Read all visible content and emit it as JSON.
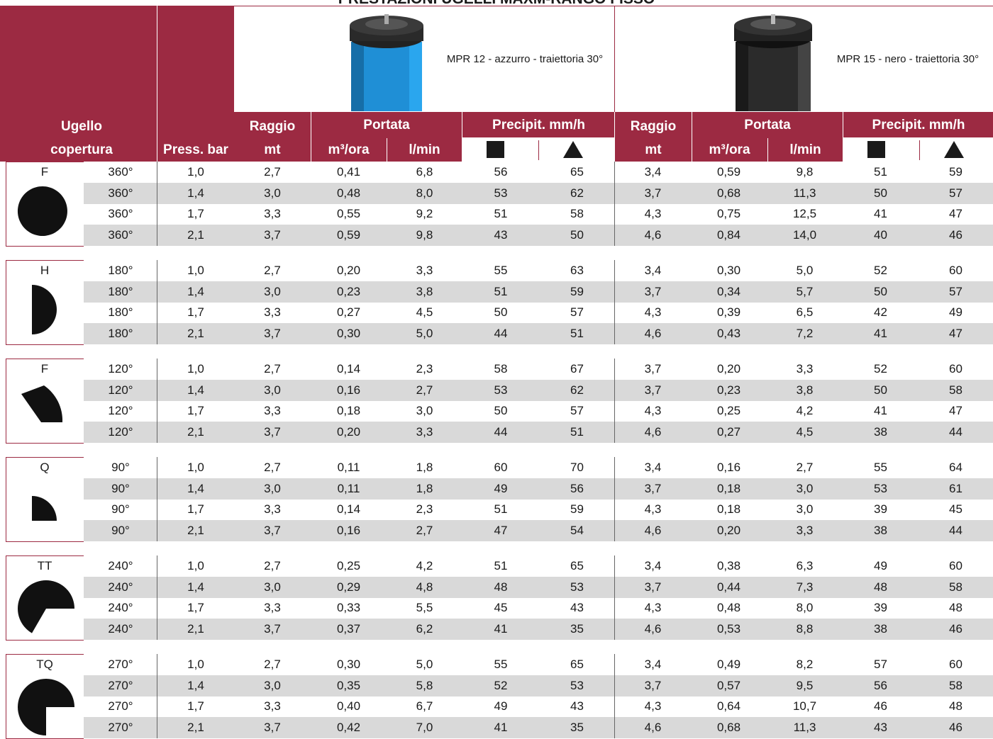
{
  "title": "PRESTAZIONI UGELLI MAXM-RANGO FISSO",
  "header": {
    "ugello": "Ugello",
    "copertura": "copertura",
    "press": "Press. bar",
    "products": [
      {
        "name": "MPR 12 - azzurro - traiettoria 30°",
        "raggio": "Raggio",
        "mt": "mt",
        "portata": "Portata",
        "m3": "m³/ora",
        "lmin": "l/min",
        "precip": "Precipit. mm/h"
      },
      {
        "name": "MPR 15 - nero - traiettoria 30°",
        "raggio": "Raggio",
        "mt": "mt",
        "portata": "Portata",
        "m3": "m³/ora",
        "lmin": "l/min",
        "precip": "Precipit. mm/h"
      }
    ]
  },
  "groups": [
    {
      "code": "F",
      "rows": [
        [
          "360°",
          "1,0",
          "2,7",
          "0,41",
          "6,8",
          "56",
          "65",
          "3,4",
          "0,59",
          "9,8",
          "51",
          "59"
        ],
        [
          "360°",
          "1,4",
          "3,0",
          "0,48",
          "8,0",
          "53",
          "62",
          "3,7",
          "0,68",
          "11,3",
          "50",
          "57"
        ],
        [
          "360°",
          "1,7",
          "3,3",
          "0,55",
          "9,2",
          "51",
          "58",
          "4,3",
          "0,75",
          "12,5",
          "41",
          "47"
        ],
        [
          "360°",
          "2,1",
          "3,7",
          "0,59",
          "9,8",
          "43",
          "50",
          "4,6",
          "0,84",
          "14,0",
          "40",
          "46"
        ]
      ]
    },
    {
      "code": "H",
      "rows": [
        [
          "180°",
          "1,0",
          "2,7",
          "0,20",
          "3,3",
          "55",
          "63",
          "3,4",
          "0,30",
          "5,0",
          "52",
          "60"
        ],
        [
          "180°",
          "1,4",
          "3,0",
          "0,23",
          "3,8",
          "51",
          "59",
          "3,7",
          "0,34",
          "5,7",
          "50",
          "57"
        ],
        [
          "180°",
          "1,7",
          "3,3",
          "0,27",
          "4,5",
          "50",
          "57",
          "4,3",
          "0,39",
          "6,5",
          "42",
          "49"
        ],
        [
          "180°",
          "2,1",
          "3,7",
          "0,30",
          "5,0",
          "44",
          "51",
          "4,6",
          "0,43",
          "7,2",
          "41",
          "47"
        ]
      ]
    },
    {
      "code": "F",
      "rows": [
        [
          "120°",
          "1,0",
          "2,7",
          "0,14",
          "2,3",
          "58",
          "67",
          "3,7",
          "0,20",
          "3,3",
          "52",
          "60"
        ],
        [
          "120°",
          "1,4",
          "3,0",
          "0,16",
          "2,7",
          "53",
          "62",
          "3,7",
          "0,23",
          "3,8",
          "50",
          "58"
        ],
        [
          "120°",
          "1,7",
          "3,3",
          "0,18",
          "3,0",
          "50",
          "57",
          "4,3",
          "0,25",
          "4,2",
          "41",
          "47"
        ],
        [
          "120°",
          "2,1",
          "3,7",
          "0,20",
          "3,3",
          "44",
          "51",
          "4,6",
          "0,27",
          "4,5",
          "38",
          "44"
        ]
      ]
    },
    {
      "code": "Q",
      "rows": [
        [
          "90°",
          "1,0",
          "2,7",
          "0,11",
          "1,8",
          "60",
          "70",
          "3,4",
          "0,16",
          "2,7",
          "55",
          "64"
        ],
        [
          "90°",
          "1,4",
          "3,0",
          "0,11",
          "1,8",
          "49",
          "56",
          "3,7",
          "0,18",
          "3,0",
          "53",
          "61"
        ],
        [
          "90°",
          "1,7",
          "3,3",
          "0,14",
          "2,3",
          "51",
          "59",
          "4,3",
          "0,18",
          "3,0",
          "39",
          "45"
        ],
        [
          "90°",
          "2,1",
          "3,7",
          "0,16",
          "2,7",
          "47",
          "54",
          "4,6",
          "0,20",
          "3,3",
          "38",
          "44"
        ]
      ]
    },
    {
      "code": "TT",
      "rows": [
        [
          "240°",
          "1,0",
          "2,7",
          "0,25",
          "4,2",
          "51",
          "65",
          "3,4",
          "0,38",
          "6,3",
          "49",
          "60"
        ],
        [
          "240°",
          "1,4",
          "3,0",
          "0,29",
          "4,8",
          "48",
          "53",
          "3,7",
          "0,44",
          "7,3",
          "48",
          "58"
        ],
        [
          "240°",
          "1,7",
          "3,3",
          "0,33",
          "5,5",
          "45",
          "43",
          "4,3",
          "0,48",
          "8,0",
          "39",
          "48"
        ],
        [
          "240°",
          "2,1",
          "3,7",
          "0,37",
          "6,2",
          "41",
          "35",
          "4,6",
          "0,53",
          "8,8",
          "38",
          "46"
        ]
      ]
    },
    {
      "code": "TQ",
      "rows": [
        [
          "270°",
          "1,0",
          "2,7",
          "0,30",
          "5,0",
          "55",
          "65",
          "3,4",
          "0,49",
          "8,2",
          "57",
          "60"
        ],
        [
          "270°",
          "1,4",
          "3,0",
          "0,35",
          "5,8",
          "52",
          "53",
          "3,7",
          "0,57",
          "9,5",
          "56",
          "58"
        ],
        [
          "270°",
          "1,7",
          "3,3",
          "0,40",
          "6,7",
          "49",
          "43",
          "4,3",
          "0,64",
          "10,7",
          "46",
          "48"
        ],
        [
          "270°",
          "2,1",
          "3,7",
          "0,42",
          "7,0",
          "41",
          "35",
          "4,6",
          "0,68",
          "11,3",
          "43",
          "46"
        ]
      ]
    }
  ]
}
